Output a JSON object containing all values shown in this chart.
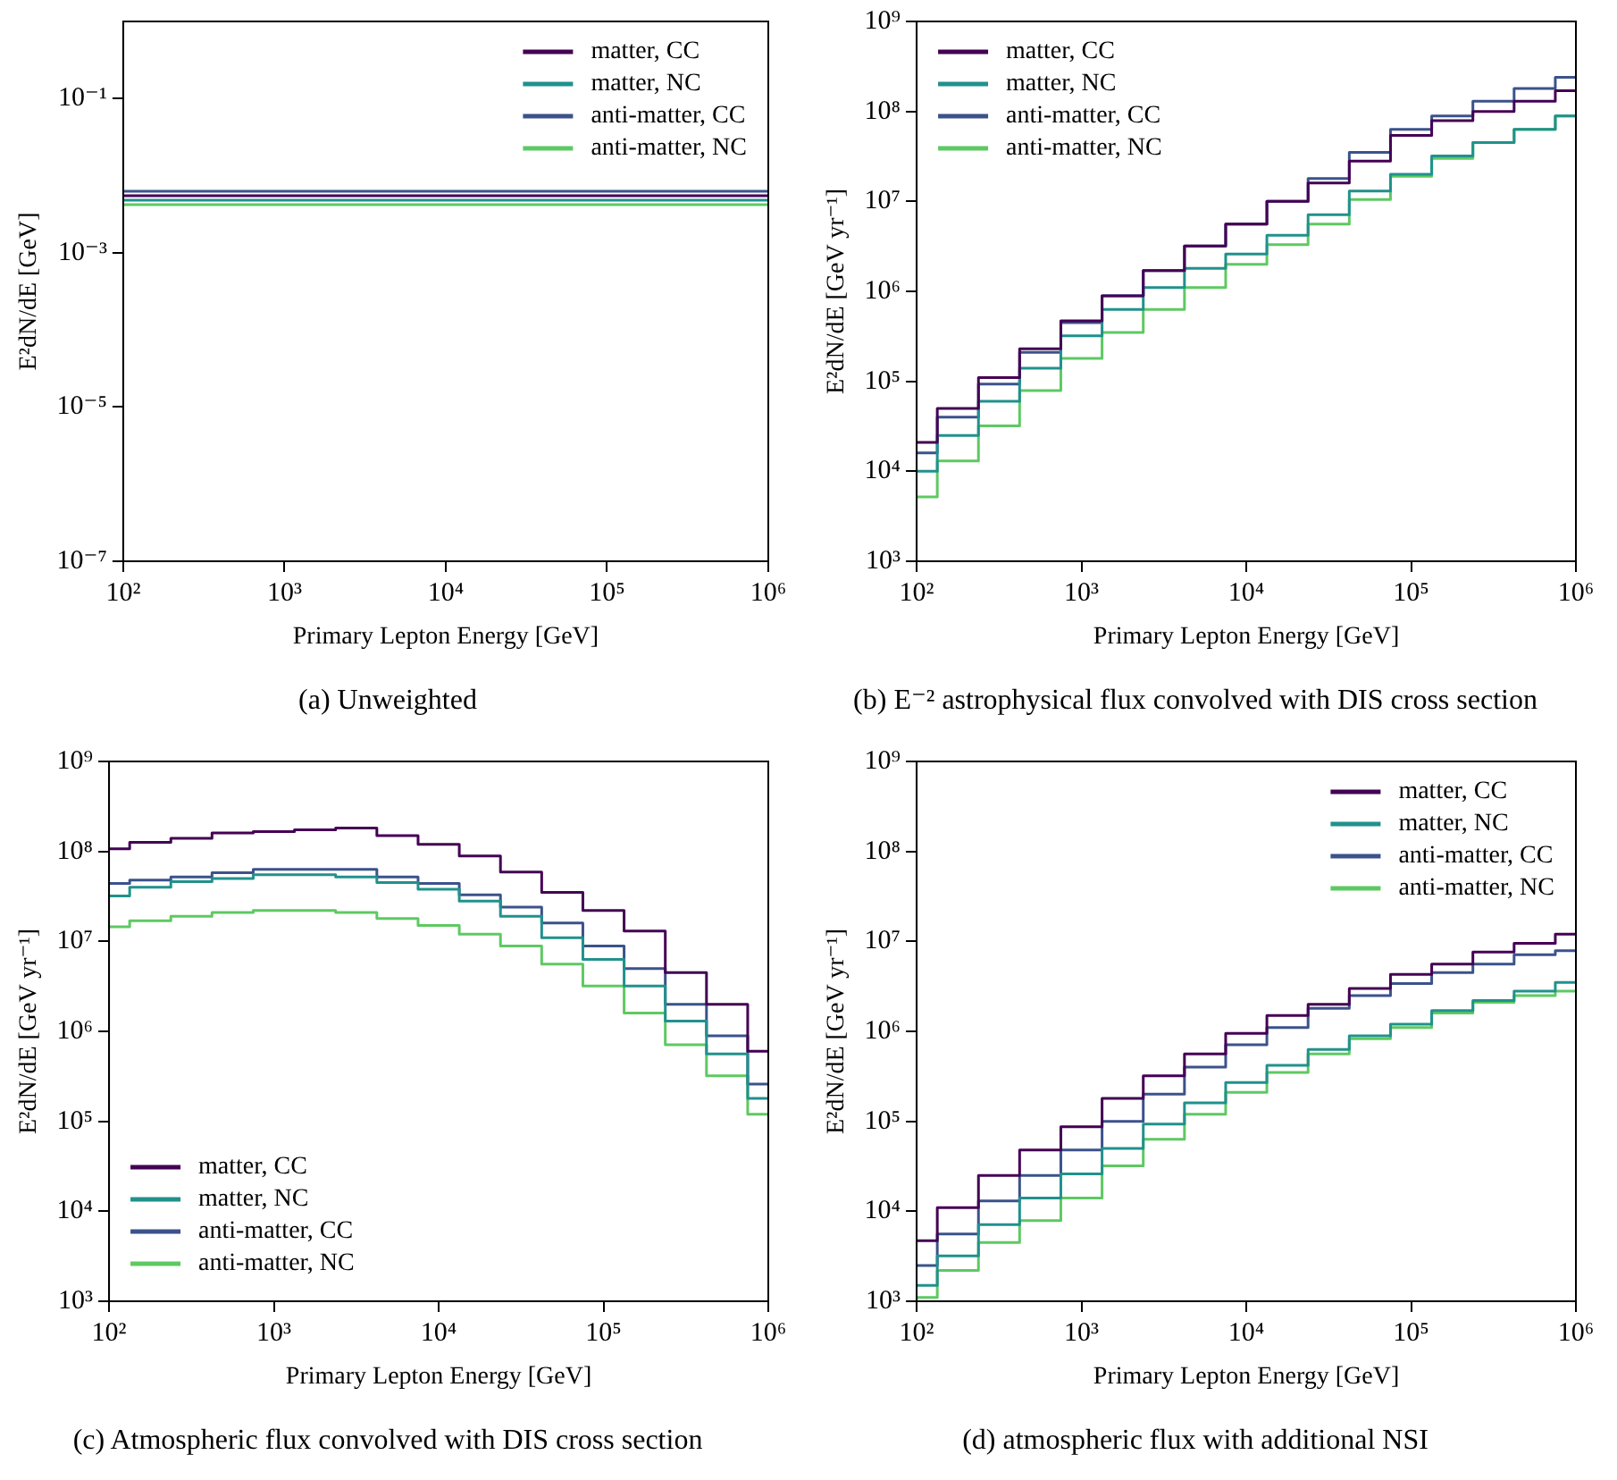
{
  "chart_data": [
    {
      "type": "step",
      "title": "(a) Unweighted",
      "xlabel": "Primary Lepton Energy [GeV]",
      "ylabel": "E²dN/dE [GeV]",
      "log": "xy",
      "grid": false,
      "legend": "top right",
      "line_style": "solid",
      "marker": "none",
      "x": [
        100,
        178,
        316,
        562,
        1000,
        1778,
        3162,
        5623,
        10000,
        17783,
        31623,
        56234,
        100000,
        177828,
        316228,
        562341,
        1000000
      ],
      "xlim": [
        100,
        1000000
      ],
      "ylim": [
        1e-07,
        1
      ],
      "xticks": [
        {
          "value": 100,
          "label": "10²"
        },
        {
          "value": 1000,
          "label": "10³"
        },
        {
          "value": 10000,
          "label": "10⁴"
        },
        {
          "value": 100000,
          "label": "10⁵"
        },
        {
          "value": 1000000,
          "label": "10⁶"
        }
      ],
      "yticks": [
        {
          "value": 1e-07,
          "label": "10⁻⁷"
        },
        {
          "value": 1e-05,
          "label": "10⁻⁵"
        },
        {
          "value": 0.001,
          "label": "10⁻³"
        },
        {
          "value": 0.1,
          "label": "10⁻¹"
        }
      ],
      "series": [
        {
          "name": "matter, CC",
          "color": "#440154",
          "values": [
            0.0055,
            0.0055,
            0.0055,
            0.0055,
            0.0055,
            0.0055,
            0.0055,
            0.0055,
            0.0055,
            0.0055,
            0.0055,
            0.0055,
            0.0055,
            0.0055,
            0.0055,
            0.0055,
            0.0055
          ]
        },
        {
          "name": "matter, NC",
          "color": "#21918c",
          "values": [
            0.0048,
            0.0048,
            0.0048,
            0.0048,
            0.0048,
            0.0048,
            0.0048,
            0.0048,
            0.0048,
            0.0048,
            0.0048,
            0.0048,
            0.0048,
            0.0048,
            0.0048,
            0.0048,
            0.0048
          ]
        },
        {
          "name": "anti-matter, CC",
          "color": "#3b528b",
          "values": [
            0.0063,
            0.0063,
            0.0063,
            0.0063,
            0.0063,
            0.0063,
            0.0063,
            0.0063,
            0.0063,
            0.0063,
            0.0063,
            0.0063,
            0.0063,
            0.0063,
            0.0063,
            0.0063,
            0.0063
          ]
        },
        {
          "name": "anti-matter, NC",
          "color": "#5ec962",
          "values": [
            0.0042,
            0.0042,
            0.0042,
            0.0042,
            0.0042,
            0.0042,
            0.0042,
            0.0042,
            0.0042,
            0.0042,
            0.0042,
            0.0042,
            0.0042,
            0.0042,
            0.0042,
            0.0042,
            0.0042
          ]
        }
      ]
    },
    {
      "type": "step",
      "title": "(b) E⁻² astrophysical flux convolved with DIS cross section",
      "xlabel": "Primary Lepton Energy [GeV]",
      "ylabel": "E²dN/dE [GeV yr⁻¹]",
      "log": "xy",
      "grid": false,
      "legend": "top left",
      "line_style": "solid",
      "marker": "none",
      "x": [
        100,
        178,
        316,
        562,
        1000,
        1778,
        3162,
        5623,
        10000,
        17783,
        31623,
        56234,
        100000,
        177828,
        316228,
        562341,
        1000000
      ],
      "xlim": [
        100,
        1000000
      ],
      "ylim": [
        1000,
        1000000000
      ],
      "xticks": [
        {
          "value": 100,
          "label": "10²"
        },
        {
          "value": 1000,
          "label": "10³"
        },
        {
          "value": 10000,
          "label": "10⁴"
        },
        {
          "value": 100000,
          "label": "10⁵"
        },
        {
          "value": 1000000,
          "label": "10⁶"
        }
      ],
      "yticks": [
        {
          "value": 1000,
          "label": "10³"
        },
        {
          "value": 10000,
          "label": "10⁴"
        },
        {
          "value": 100000,
          "label": "10⁵"
        },
        {
          "value": 1000000,
          "label": "10⁶"
        },
        {
          "value": 10000000,
          "label": "10⁷"
        },
        {
          "value": 100000000,
          "label": "10⁸"
        },
        {
          "value": 1000000000,
          "label": "10⁹"
        }
      ],
      "series": [
        {
          "name": "matter, CC",
          "color": "#440154",
          "values": [
            21000.0,
            50000.0,
            110000.0,
            230000.0,
            470000.0,
            890000.0,
            1700000.0,
            3200000.0,
            5600000.0,
            10000000.0,
            16000000.0,
            28000000.0,
            54000000.0,
            79000000.0,
            100000000.0,
            130000000.0,
            170000000.0
          ]
        },
        {
          "name": "matter, NC",
          "color": "#21918c",
          "values": [
            10000.0,
            25000.0,
            60000.0,
            140000.0,
            320000.0,
            630000.0,
            1100000.0,
            1800000.0,
            2600000.0,
            4200000.0,
            7100000.0,
            13000000.0,
            20000000.0,
            32000000.0,
            45000000.0,
            63000000.0,
            89000000.0
          ]
        },
        {
          "name": "anti-matter, CC",
          "color": "#3b528b",
          "values": [
            16000.0,
            40000.0,
            93000.0,
            210000.0,
            450000.0,
            890000.0,
            1700000.0,
            3200000.0,
            5600000.0,
            10000000.0,
            18000000.0,
            35000000.0,
            63000000.0,
            89000000.0,
            130000000.0,
            180000000.0,
            240000000.0
          ]
        },
        {
          "name": "anti-matter, NC",
          "color": "#5ec962",
          "values": [
            5200.0,
            13000.0,
            32000.0,
            79000.0,
            180000.0,
            350000.0,
            630000.0,
            1100000.0,
            2000000.0,
            3300000.0,
            5600000.0,
            10500000.0,
            19000000.0,
            30000000.0,
            45000000.0,
            63000000.0,
            89000000.0
          ]
        }
      ]
    },
    {
      "type": "step",
      "title": "(c) Atmospheric flux convolved with DIS cross section",
      "xlabel": "Primary Lepton Energy [GeV]",
      "ylabel": "E²dN/dE [GeV yr⁻¹]",
      "log": "xy",
      "grid": false,
      "legend": "bottom left",
      "line_style": "solid",
      "marker": "none",
      "x": [
        100,
        178,
        316,
        562,
        1000,
        1778,
        3162,
        5623,
        10000,
        17783,
        31623,
        56234,
        100000,
        177828,
        316228,
        562341,
        1000000
      ],
      "xlim": [
        100,
        1000000
      ],
      "ylim": [
        1000,
        1000000000
      ],
      "xticks": [
        {
          "value": 100,
          "label": "10²"
        },
        {
          "value": 1000,
          "label": "10³"
        },
        {
          "value": 10000,
          "label": "10⁴"
        },
        {
          "value": 100000,
          "label": "10⁵"
        },
        {
          "value": 1000000,
          "label": "10⁶"
        }
      ],
      "yticks": [
        {
          "value": 1000,
          "label": "10³"
        },
        {
          "value": 10000,
          "label": "10⁴"
        },
        {
          "value": 100000,
          "label": "10⁵"
        },
        {
          "value": 1000000,
          "label": "10⁶"
        },
        {
          "value": 10000000,
          "label": "10⁷"
        },
        {
          "value": 100000000,
          "label": "10⁸"
        },
        {
          "value": 1000000000,
          "label": "10⁹"
        }
      ],
      "series": [
        {
          "name": "matter, CC",
          "color": "#440154",
          "values": [
            107000000.0,
            126000000.0,
            140000000.0,
            160000000.0,
            166000000.0,
            174000000.0,
            182000000.0,
            150000000.0,
            120000000.0,
            89000000.0,
            59000000.0,
            35000000.0,
            22000000.0,
            13000000.0,
            4500000.0,
            2000000.0,
            600000.0
          ]
        },
        {
          "name": "matter, NC",
          "color": "#21918c",
          "values": [
            32000000.0,
            40000000.0,
            46000000.0,
            50000000.0,
            55000000.0,
            55000000.0,
            52000000.0,
            45000000.0,
            38000000.0,
            28000000.0,
            19000000.0,
            11000000.0,
            6300000.0,
            3200000.0,
            1300000.0,
            560000.0,
            180000.0
          ]
        },
        {
          "name": "anti-matter, CC",
          "color": "#3b528b",
          "values": [
            44000000.0,
            48000000.0,
            52000000.0,
            58000000.0,
            63000000.0,
            63000000.0,
            63000000.0,
            52000000.0,
            44000000.0,
            33000000.0,
            24000000.0,
            16000000.0,
            8900000.0,
            5000000.0,
            2000000.0,
            890000.0,
            260000.0
          ]
        },
        {
          "name": "anti-matter, NC",
          "color": "#5ec962",
          "values": [
            14500000.0,
            17000000.0,
            19000000.0,
            21000000.0,
            22000000.0,
            22000000.0,
            21000000.0,
            18000000.0,
            15000000.0,
            12000000.0,
            8900000.0,
            5600000.0,
            3200000.0,
            1600000.0,
            710000.0,
            320000.0,
            120000.0
          ]
        }
      ]
    },
    {
      "type": "step",
      "title": "(d) atmospheric flux with additional NSI",
      "xlabel": "Primary Lepton Energy [GeV]",
      "ylabel": "E²dN/dE [GeV yr⁻¹]",
      "log": "xy",
      "grid": false,
      "legend": "top right",
      "line_style": "solid",
      "marker": "none",
      "x": [
        100,
        178,
        316,
        562,
        1000,
        1778,
        3162,
        5623,
        10000,
        17783,
        31623,
        56234,
        100000,
        177828,
        316228,
        562341,
        1000000
      ],
      "xlim": [
        100,
        1000000
      ],
      "ylim": [
        1000,
        1000000000
      ],
      "xticks": [
        {
          "value": 100,
          "label": "10²"
        },
        {
          "value": 1000,
          "label": "10³"
        },
        {
          "value": 10000,
          "label": "10⁴"
        },
        {
          "value": 100000,
          "label": "10⁵"
        },
        {
          "value": 1000000,
          "label": "10⁶"
        }
      ],
      "yticks": [
        {
          "value": 1000,
          "label": "10³"
        },
        {
          "value": 10000,
          "label": "10⁴"
        },
        {
          "value": 100000,
          "label": "10⁵"
        },
        {
          "value": 1000000,
          "label": "10⁶"
        },
        {
          "value": 10000000,
          "label": "10⁷"
        },
        {
          "value": 100000000,
          "label": "10⁸"
        },
        {
          "value": 1000000000,
          "label": "10⁹"
        }
      ],
      "series": [
        {
          "name": "matter, CC",
          "color": "#440154",
          "values": [
            4700.0,
            11000.0,
            25000.0,
            48000.0,
            87000.0,
            180000.0,
            320000.0,
            560000.0,
            950000.0,
            1500000.0,
            2000000.0,
            3000000.0,
            4300000.0,
            5600000.0,
            7600000.0,
            9500000.0,
            12000000.0
          ]
        },
        {
          "name": "matter, NC",
          "color": "#21918c",
          "values": [
            1500.0,
            3200.0,
            7100.0,
            14000.0,
            26000.0,
            50000.0,
            93000.0,
            160000.0,
            270000.0,
            420000.0,
            630000.0,
            890000.0,
            1200000.0,
            1700000.0,
            2200000.0,
            2800000.0,
            3500000.0
          ]
        },
        {
          "name": "anti-matter, CC",
          "color": "#3b528b",
          "values": [
            2500.0,
            5600.0,
            13000.0,
            25000.0,
            48000.0,
            100000.0,
            200000.0,
            400000.0,
            710000.0,
            1100000.0,
            1800000.0,
            2500000.0,
            3400000.0,
            4500000.0,
            5600000.0,
            7100000.0,
            7900000.0
          ]
        },
        {
          "name": "anti-matter, NC",
          "color": "#5ec962",
          "values": [
            1100.0,
            2200.0,
            4500.0,
            7900.0,
            14000.0,
            32000.0,
            63000.0,
            120000.0,
            210000.0,
            350000.0,
            560000.0,
            830000.0,
            1100000.0,
            1600000.0,
            2100000.0,
            2500000.0,
            2800000.0
          ]
        }
      ]
    }
  ]
}
